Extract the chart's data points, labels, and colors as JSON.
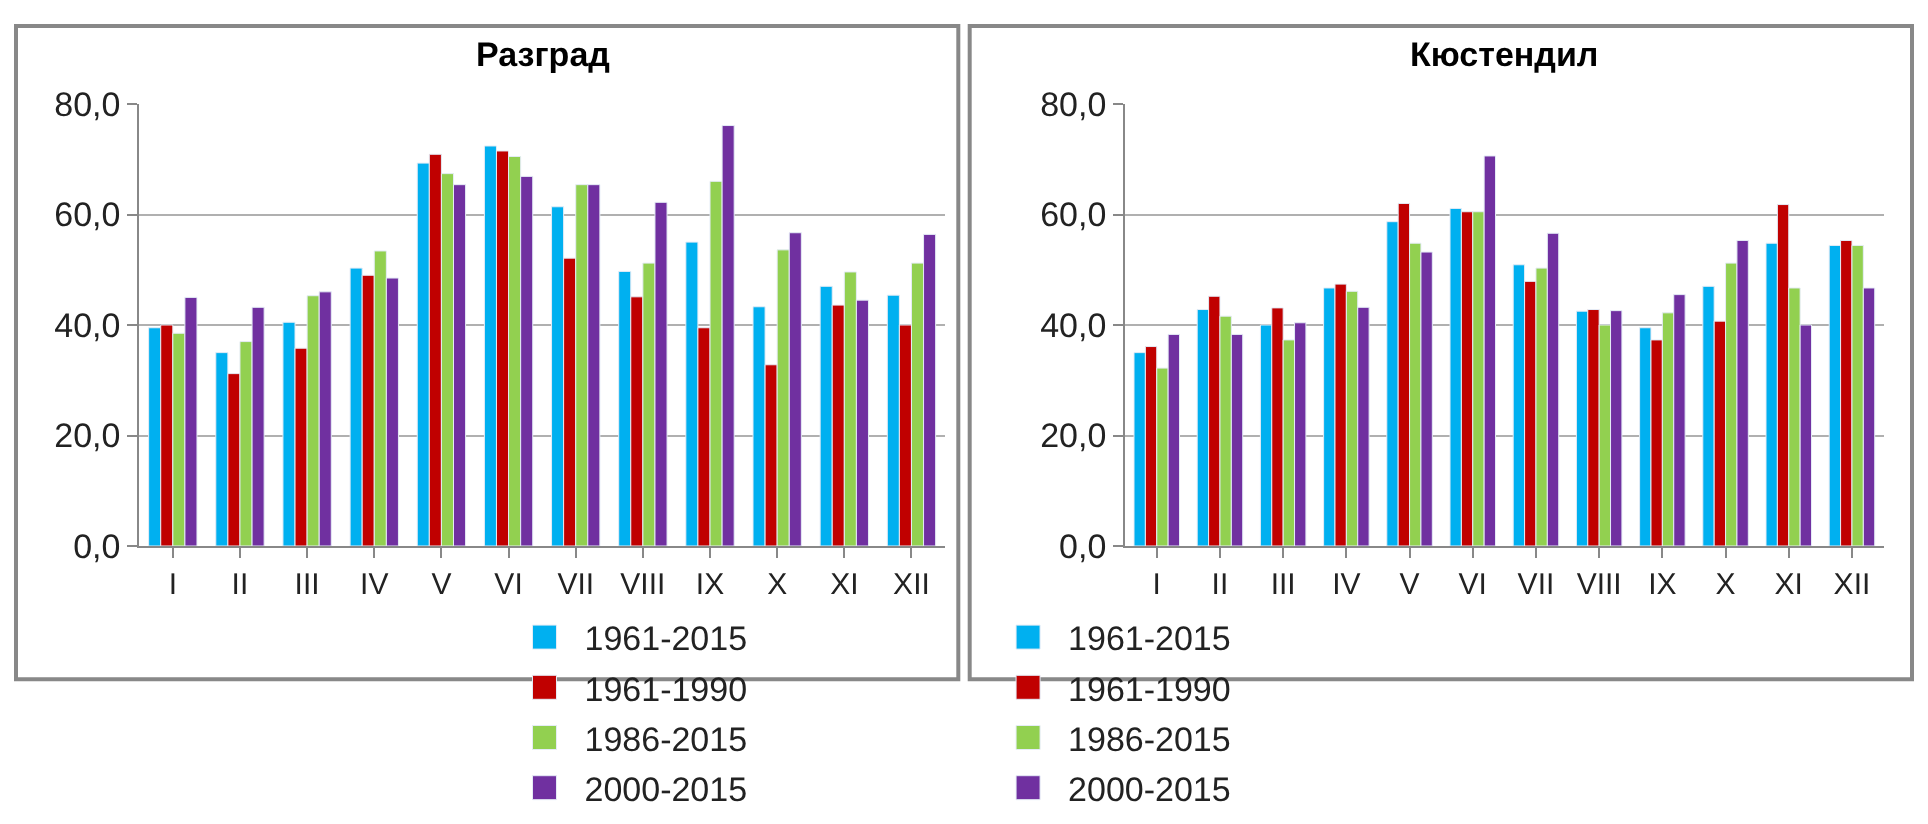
{
  "chart_data": [
    {
      "type": "bar",
      "title": "Разград",
      "categories": [
        "I",
        "II",
        "III",
        "IV",
        "V",
        "VI",
        "VII",
        "VIII",
        "IX",
        "X",
        "XI",
        "XII"
      ],
      "series": [
        {
          "name": "1961-2015",
          "color": "#00b0f0",
          "values": [
            39.5,
            35,
            40.5,
            50.3,
            69.3,
            72.4,
            61.4,
            49.7,
            55,
            43.3,
            47,
            45.4
          ]
        },
        {
          "name": "1961-1990",
          "color": "#c00000",
          "values": [
            40,
            31.2,
            35.8,
            49,
            70.9,
            71.5,
            52.1,
            45.1,
            39.5,
            32.8,
            43.6,
            40
          ]
        },
        {
          "name": "1986-2015",
          "color": "#92d050",
          "values": [
            38.5,
            37,
            45.3,
            53.4,
            67.4,
            70.5,
            65.4,
            51.2,
            66,
            53.6,
            49.6,
            51.2
          ]
        },
        {
          "name": "2000-2015",
          "color": "#7030a0",
          "values": [
            45,
            43.2,
            46,
            48.5,
            65.4,
            66.9,
            65.4,
            62.2,
            76.1,
            56.7,
            44.5,
            56.4
          ]
        }
      ],
      "ylim": [
        0,
        80
      ],
      "yticks": [
        {
          "value": 0,
          "label": "0,0"
        },
        {
          "value": 20,
          "label": "20,0"
        },
        {
          "value": 40,
          "label": "40,0"
        },
        {
          "value": 60,
          "label": "60,0"
        },
        {
          "value": 80,
          "label": "80,0"
        }
      ],
      "grid": "y",
      "legend": "bottom"
    },
    {
      "type": "bar",
      "title": "Кюстендил",
      "categories": [
        "I",
        "II",
        "III",
        "IV",
        "V",
        "VI",
        "VII",
        "VIII",
        "IX",
        "X",
        "XI",
        "XII"
      ],
      "series": [
        {
          "name": "1961-2015",
          "color": "#00b0f0",
          "values": [
            35,
            42.8,
            40,
            46.7,
            58.7,
            61.1,
            50.9,
            42.5,
            39.5,
            47,
            54.8,
            54.4
          ]
        },
        {
          "name": "1961-1990",
          "color": "#c00000",
          "values": [
            36.1,
            45.2,
            43.1,
            47.4,
            62,
            60.5,
            47.9,
            42.8,
            37.3,
            40.7,
            61.8,
            55.3
          ]
        },
        {
          "name": "1986-2015",
          "color": "#92d050",
          "values": [
            32.2,
            41.6,
            37.3,
            46.1,
            54.8,
            60.5,
            50.3,
            40,
            42.2,
            51.2,
            46.7,
            54.4
          ]
        },
        {
          "name": "2000-2015",
          "color": "#7030a0",
          "values": [
            38.3,
            38.3,
            40.4,
            43.2,
            53.2,
            70.6,
            56.6,
            42.6,
            45.5,
            55.3,
            40,
            46.7
          ]
        }
      ],
      "ylim": [
        0,
        80
      ],
      "yticks": [
        {
          "value": 0,
          "label": "0,0"
        },
        {
          "value": 20,
          "label": "20,0"
        },
        {
          "value": 40,
          "label": "40,0"
        },
        {
          "value": 60,
          "label": "60,0"
        },
        {
          "value": 80,
          "label": "80,0"
        }
      ],
      "grid": "y",
      "legend": "bottom"
    }
  ]
}
